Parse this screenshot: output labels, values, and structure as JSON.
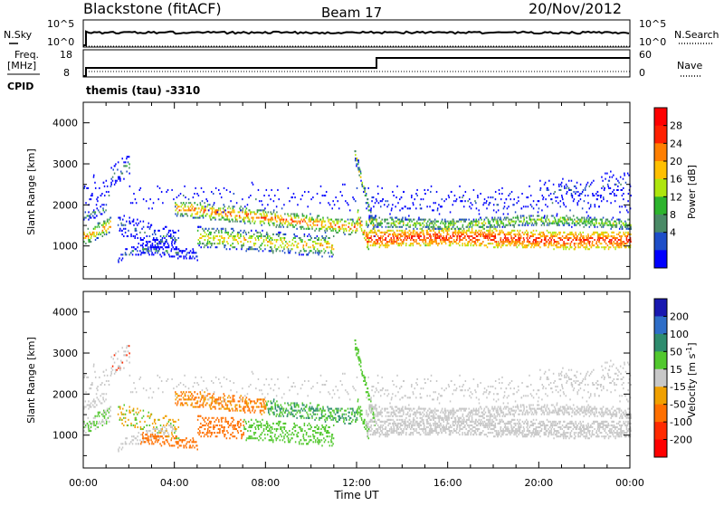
{
  "header": {
    "title": "Blackstone (fitACF)",
    "beam": "Beam 17",
    "date": "20/Nov/2012"
  },
  "noise_panel": {
    "left_label": "N.Sky",
    "right_label": "N.Search",
    "left_ticks": [
      "10^5",
      "10^0"
    ],
    "right_ticks": [
      "10^5",
      "10^0"
    ]
  },
  "freq_panel": {
    "left_label_1": "Freq.",
    "left_label_2": "[MHz]",
    "left_label_3": "CPID",
    "right_label": "Nave",
    "left_ticks": [
      "18",
      "8"
    ],
    "right_ticks": [
      "60",
      "0"
    ],
    "cpid_text": "themis (tau)  -3310"
  },
  "colors": {
    "power": [
      "#0000ff",
      "#1e4ec8",
      "#4a8a66",
      "#2db42d",
      "#aee60e",
      "#ffc000",
      "#ff7f00",
      "#ff2000",
      "#ff0000"
    ],
    "velocity": [
      "#1818b0",
      "#2e6ec8",
      "#2e8c6e",
      "#52c82e",
      "#c8c8c8",
      "#f0a000",
      "#ff7000",
      "#ff2a00",
      "#ff0000"
    ]
  },
  "chart_data": [
    {
      "type": "heatmap",
      "name": "power",
      "ylabel": "Slant Range [km]",
      "yticks": [
        "1000",
        "2000",
        "3000",
        "4000"
      ],
      "ylim": [
        200,
        4500
      ],
      "xlim": [
        0,
        24
      ],
      "colorbar_label": "Power [dB]",
      "colorbar_ticks": [
        "4",
        "8",
        "12",
        "16",
        "20",
        "24",
        "28"
      ],
      "colorbar_range": [
        0,
        32
      ]
    },
    {
      "type": "heatmap",
      "name": "velocity",
      "ylabel": "Slant Range [km]",
      "yticks": [
        "1000",
        "2000",
        "3000",
        "4000"
      ],
      "ylim": [
        200,
        4500
      ],
      "xlim": [
        0,
        24
      ],
      "colorbar_label": "Velocity [m s",
      "colorbar_label_sup": "-1",
      "colorbar_label_end": "]",
      "colorbar_ticks": [
        "200",
        "100",
        "50",
        "15",
        "-15",
        "-50",
        "-100",
        "-200"
      ]
    }
  ],
  "xaxis": {
    "label": "Time UT",
    "ticks": [
      "00:00",
      "04:00",
      "08:00",
      "12:00",
      "16:00",
      "20:00",
      "00:00"
    ],
    "tick_hours": [
      0,
      4,
      8,
      12,
      16,
      20,
      24
    ]
  }
}
